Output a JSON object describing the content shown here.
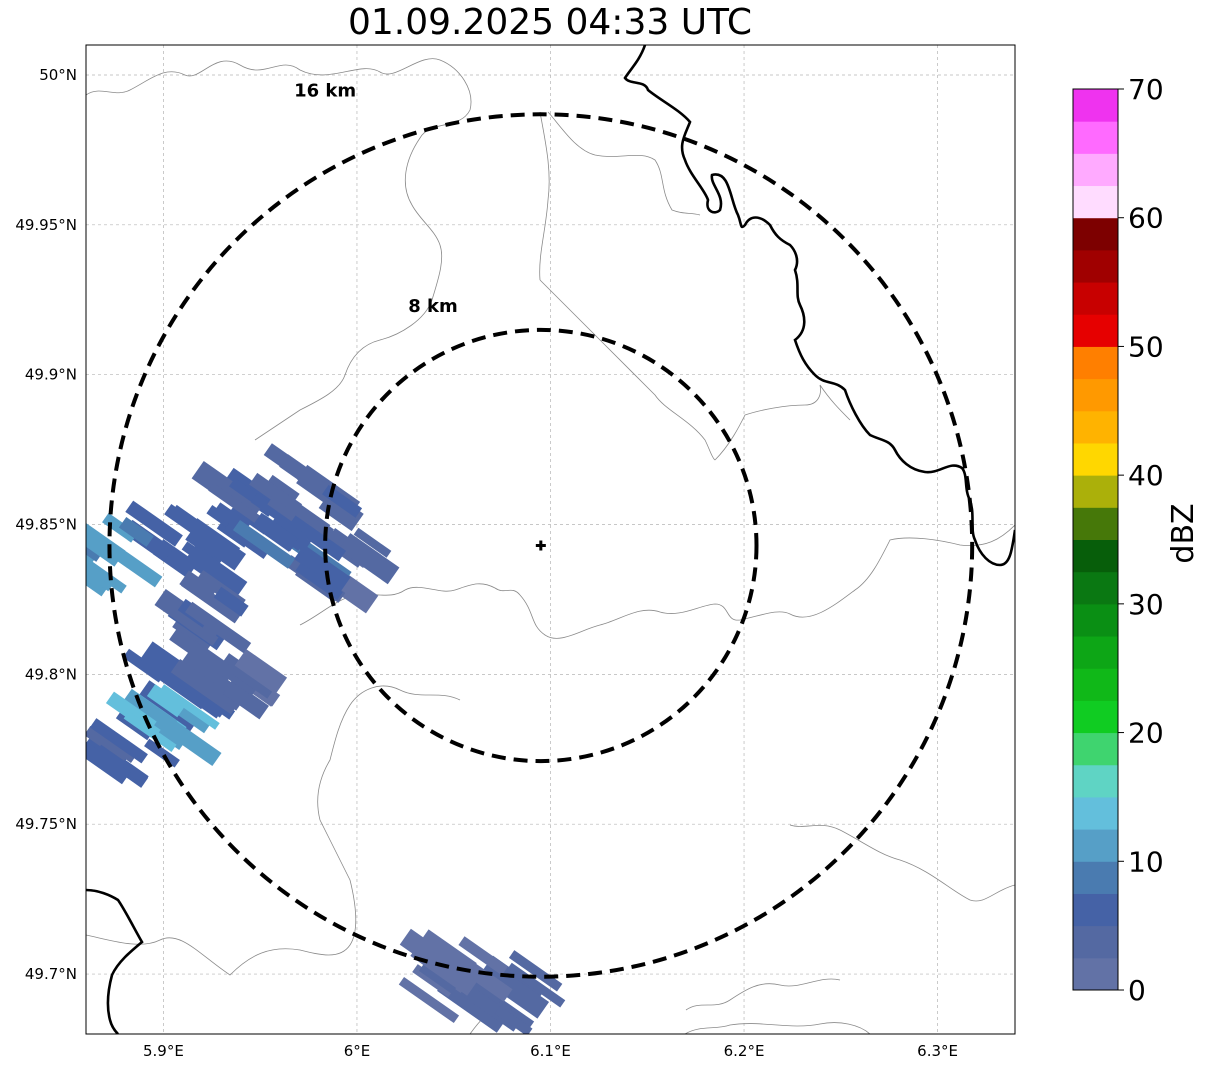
{
  "title": "01.09.2025 04:33 UTC",
  "map": {
    "lon_range": [
      5.86,
      6.34
    ],
    "lat_range": [
      49.68,
      50.01
    ],
    "lon_ticks": [
      {
        "value": 5.9,
        "label": "5.9°E"
      },
      {
        "value": 6.0,
        "label": "6°E"
      },
      {
        "value": 6.1,
        "label": "6.1°E"
      },
      {
        "value": 6.2,
        "label": "6.2°E"
      },
      {
        "value": 6.3,
        "label": "6.3°E"
      }
    ],
    "lat_ticks": [
      {
        "value": 50.0,
        "label": "50°N"
      },
      {
        "value": 49.95,
        "label": "49.95°N"
      },
      {
        "value": 49.9,
        "label": "49.9°N"
      },
      {
        "value": 49.85,
        "label": "49.85°N"
      },
      {
        "value": 49.8,
        "label": "49.8°N"
      },
      {
        "value": 49.75,
        "label": "49.75°N"
      },
      {
        "value": 49.7,
        "label": "49.7°N"
      }
    ],
    "grid": true,
    "radar_site": {
      "lon": 6.095,
      "lat": 49.843
    },
    "range_rings": [
      {
        "km": 8,
        "label": "8 km"
      },
      {
        "km": 16,
        "label": "16 km"
      }
    ]
  },
  "colorbar": {
    "label": "dBZ",
    "min": 0,
    "max": 70,
    "ticks": [
      "0",
      "10",
      "20",
      "30",
      "40",
      "50",
      "60",
      "70"
    ],
    "colors": [
      "#6272a6",
      "#5469a2",
      "#4562a6",
      "#4a7bb0",
      "#569fc7",
      "#63bfdc",
      "#5fd4c4",
      "#3fd46f",
      "#10cc22",
      "#10b818",
      "#0da616",
      "#0a8f14",
      "#0a7812",
      "#075e0a",
      "#467809",
      "#abb00a",
      "#ffd700",
      "#ffb300",
      "#ff9900",
      "#ff7f00",
      "#e60000",
      "#c80000",
      "#a00000",
      "#7d0000",
      "#ffdcff",
      "#ffaaff",
      "#ff6aff",
      "#ef33ef"
    ]
  },
  "echoes": [
    {
      "lon": 5.945,
      "lat": 49.853,
      "dbz": 5
    },
    {
      "lon": 5.91,
      "lat": 49.842,
      "dbz": 6
    },
    {
      "lon": 5.93,
      "lat": 49.82,
      "dbz": 4
    },
    {
      "lon": 5.905,
      "lat": 49.795,
      "dbz": 6
    },
    {
      "lon": 5.885,
      "lat": 49.775,
      "dbz": 5
    },
    {
      "lon": 5.935,
      "lat": 49.8,
      "dbz": 3
    },
    {
      "lon": 5.9,
      "lat": 49.783,
      "dbz": 13
    },
    {
      "lon": 5.87,
      "lat": 49.84,
      "dbz": 10
    },
    {
      "lon": 5.975,
      "lat": 49.86,
      "dbz": 4
    },
    {
      "lon": 5.99,
      "lat": 49.835,
      "dbz": 3
    },
    {
      "lon": 5.97,
      "lat": 49.84,
      "dbz": 7
    },
    {
      "lon": 6.075,
      "lat": 49.692,
      "dbz": 3
    },
    {
      "lon": 6.05,
      "lat": 49.7,
      "dbz": 2
    }
  ],
  "borders": [],
  "admin_lines": []
}
